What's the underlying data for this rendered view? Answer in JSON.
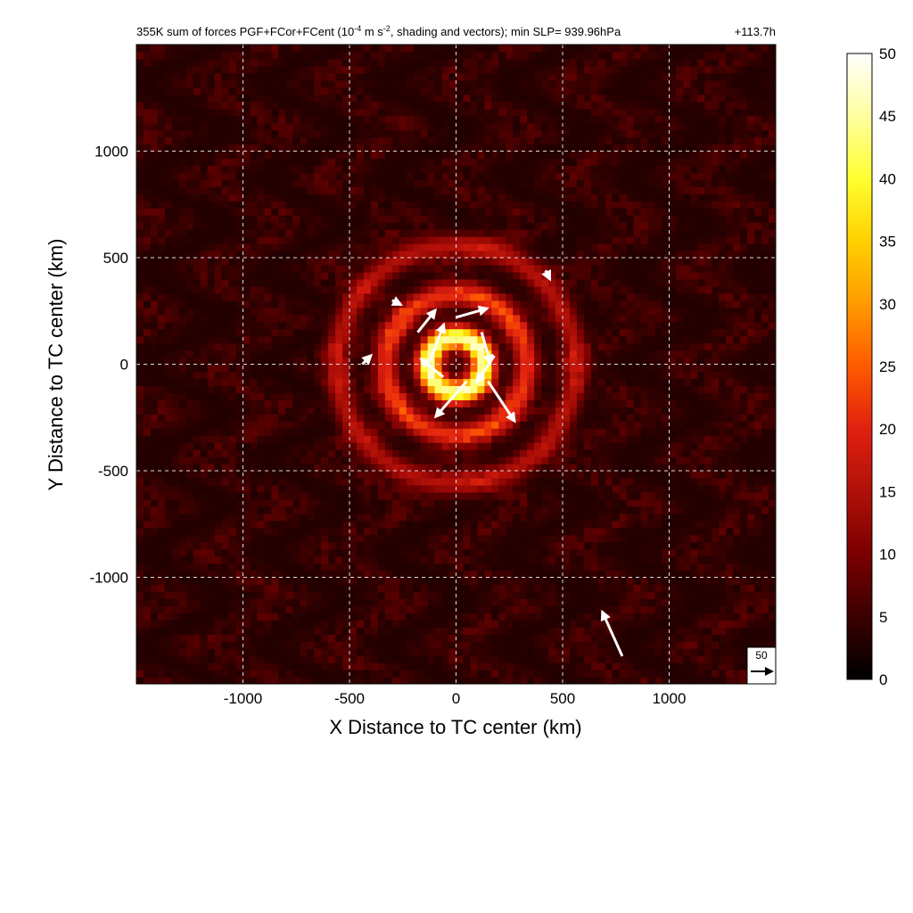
{
  "chart_data": {
    "type": "heatmap",
    "title": {
      "prefix": "355K sum of forces PGF+FCor+FCent (10",
      "exp1": "-4",
      "mid": " m s",
      "exp2": "-2",
      "suffix": ", shading and vectors); min SLP= 939.96hPa",
      "time": "+113.7h"
    },
    "xlabel": "X Distance to TC center (km)",
    "ylabel": "Y Distance to TC center (km)",
    "xlim": [
      -1500,
      1500
    ],
    "ylim": [
      -1500,
      1500
    ],
    "xticks": [
      -1000,
      -500,
      0,
      500,
      1000
    ],
    "yticks": [
      -1000,
      -500,
      0,
      500,
      1000
    ],
    "grid": true,
    "colorbar": {
      "min": 0,
      "max": 50,
      "ticks": [
        0,
        5,
        10,
        15,
        20,
        25,
        30,
        35,
        40,
        45,
        50
      ],
      "colors": [
        "#000000",
        "#3a0000",
        "#7a0000",
        "#b01008",
        "#e02010",
        "#ff5a00",
        "#ff9a00",
        "#ffd000",
        "#ffff30",
        "#ffffa0",
        "#ffffff"
      ]
    },
    "reference_vector": {
      "label": "50",
      "magnitude": 50
    },
    "rings": [
      {
        "radius_km": 130,
        "peak": 42
      },
      {
        "radius_km": 330,
        "peak": 18
      },
      {
        "radius_km": 560,
        "peak": 12
      }
    ],
    "vectors": [
      {
        "x": 150,
        "y": -80,
        "u": 60,
        "v": -90
      },
      {
        "x": 50,
        "y": -80,
        "u": -70,
        "v": -80
      },
      {
        "x": -120,
        "y": 20,
        "u": 30,
        "v": 80
      },
      {
        "x": 0,
        "y": 220,
        "u": 70,
        "v": 20
      },
      {
        "x": 120,
        "y": 150,
        "u": 20,
        "v": -70
      },
      {
        "x": -180,
        "y": 150,
        "u": 40,
        "v": 50
      },
      {
        "x": 180,
        "y": 40,
        "u": -40,
        "v": -60
      },
      {
        "x": -60,
        "y": -60,
        "u": -50,
        "v": 40
      },
      {
        "x": 780,
        "y": -1370,
        "u": -45,
        "v": 100
      },
      {
        "x": -440,
        "y": 0,
        "u": 20,
        "v": 20
      },
      {
        "x": 420,
        "y": 440,
        "u": 10,
        "v": -20
      },
      {
        "x": -300,
        "y": 300,
        "u": 20,
        "v": -10
      }
    ]
  }
}
